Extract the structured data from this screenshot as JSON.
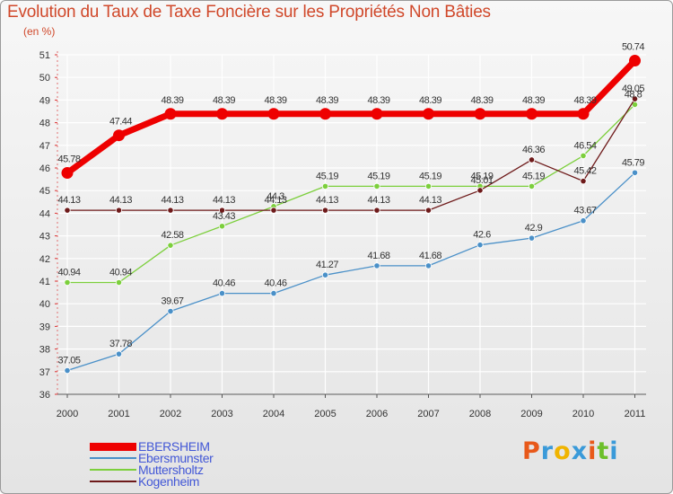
{
  "title": "Evolution du Taux de Taxe Foncière sur les Propriétés Non Bâties",
  "unit_label": "(en %)",
  "logo_text": "Proxiti",
  "logo_colors": [
    "#e8591a",
    "#3a9ad9",
    "#f0b400",
    "#3a9ad9",
    "#e8591a",
    "#6cbf2a",
    "#3a9ad9"
  ],
  "colors": {
    "frame": "#9a9a9a",
    "title": "#d0482a",
    "legend_text": "#4257d6",
    "grid": "#ffffff"
  },
  "chart_data": {
    "type": "line",
    "title": "Evolution du Taux de Taxe Foncière sur les Propriétés Non Bâties",
    "ylabel": "(en %)",
    "xlabel": "",
    "x": [
      "2000",
      "2001",
      "2002",
      "2003",
      "2004",
      "2005",
      "2006",
      "2007",
      "2008",
      "2009",
      "2010",
      "2011"
    ],
    "ylim": [
      36,
      51
    ],
    "yticks": [
      "36",
      "37",
      "38",
      "39",
      "40",
      "41",
      "42",
      "43",
      "44",
      "45",
      "46",
      "47",
      "48",
      "49",
      "50",
      "51"
    ],
    "grid": true,
    "legend_position": "bottom-left",
    "series": [
      {
        "name": "EBERSHEIM",
        "color": "#ee0000",
        "values": [
          45.78,
          47.44,
          48.39,
          48.39,
          48.39,
          48.39,
          48.39,
          48.39,
          48.39,
          48.39,
          48.39,
          50.74
        ],
        "labels": [
          "45.78",
          "47.44",
          "48.39",
          "48.39",
          "48.39",
          "48.39",
          "48.39",
          "48.39",
          "48.39",
          "48.39",
          "48.39",
          "50.74"
        ]
      },
      {
        "name": "Ebersmunster",
        "color": "#4a90c8",
        "values": [
          37.05,
          37.78,
          39.67,
          40.46,
          40.46,
          41.27,
          41.68,
          41.68,
          42.6,
          42.9,
          43.67,
          45.79
        ],
        "labels": [
          "37.05",
          "37.78",
          "39.67",
          "40.46",
          "40.46",
          "41.27",
          "41.68",
          "41.68",
          "42.6",
          "42.9",
          "43.67",
          "45.79"
        ]
      },
      {
        "name": "Muttersholtz",
        "color": "#7ccf3c",
        "values": [
          40.94,
          40.94,
          42.58,
          43.43,
          44.3,
          45.19,
          45.19,
          45.19,
          45.19,
          45.19,
          46.54,
          48.8
        ],
        "labels": [
          "40.94",
          "40.94",
          "42.58",
          "43.43",
          "44.3",
          "45.19",
          "45.19",
          "45.19",
          "45.19",
          "45.19",
          "46.54",
          "48.8"
        ]
      },
      {
        "name": "Kogenheim",
        "color": "#6e1a1a",
        "values": [
          44.13,
          44.13,
          44.13,
          44.13,
          44.13,
          44.13,
          44.13,
          44.13,
          45.01,
          46.36,
          45.42,
          49.05
        ],
        "labels": [
          "44.13",
          "44.13",
          "44.13",
          "44.13",
          "44.13",
          "44.13",
          "44.13",
          "44.13",
          "45.01",
          "46.36",
          "45.42",
          "49.05"
        ]
      }
    ]
  }
}
